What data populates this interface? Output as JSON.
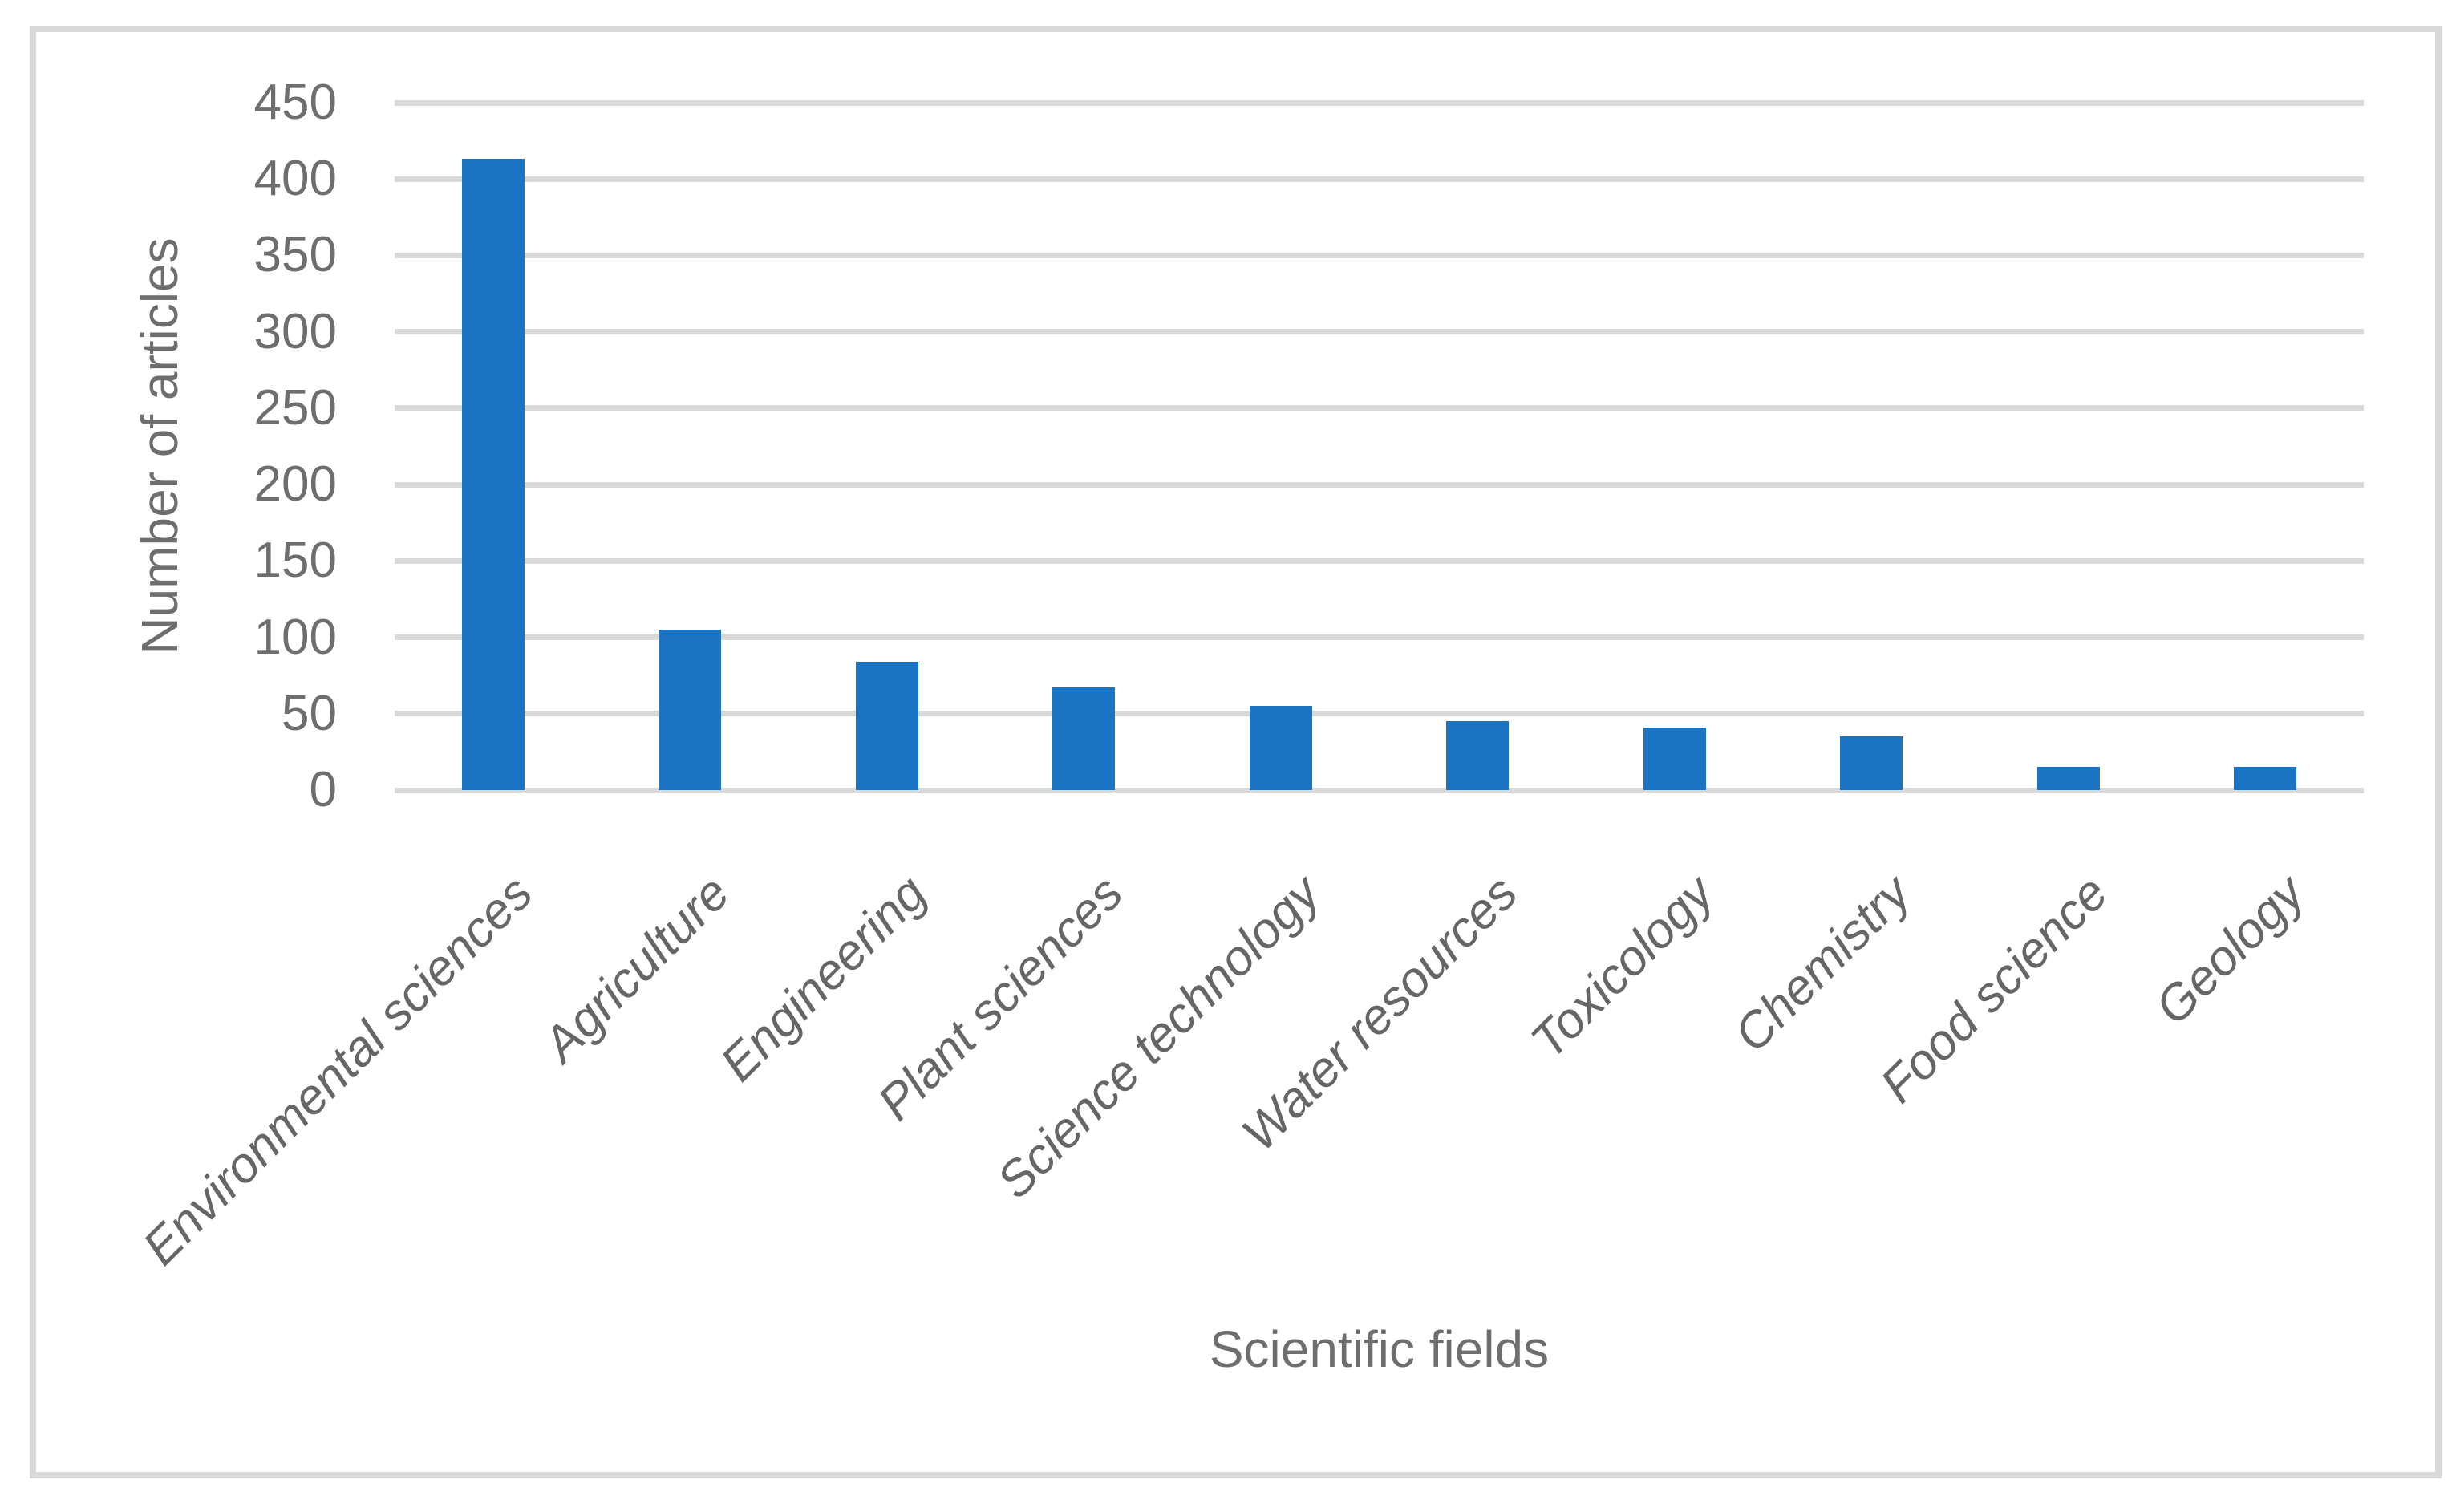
{
  "figure": {
    "background": "#ffffff",
    "border_color": "#d9d9d9"
  },
  "chart_data": {
    "type": "bar",
    "title": "",
    "categories": [
      "Environmental sciences",
      "Agriculture",
      "Engineering",
      "Plant sciences",
      "Science technology",
      "Water resources",
      "Toxicology",
      "Chemistry",
      "Food science",
      "Geology"
    ],
    "values": [
      413,
      105,
      84,
      67,
      55,
      45,
      41,
      35,
      15,
      15
    ],
    "xlabel": "Scientific fields",
    "ylabel": "Number of articles",
    "ylim": [
      0,
      450
    ],
    "ytick_step": 50,
    "grid": true,
    "legend": false,
    "bar_color": "#1b73c4",
    "gridline_color": "#d9d9d9",
    "text_color": "#6e6e6e"
  }
}
